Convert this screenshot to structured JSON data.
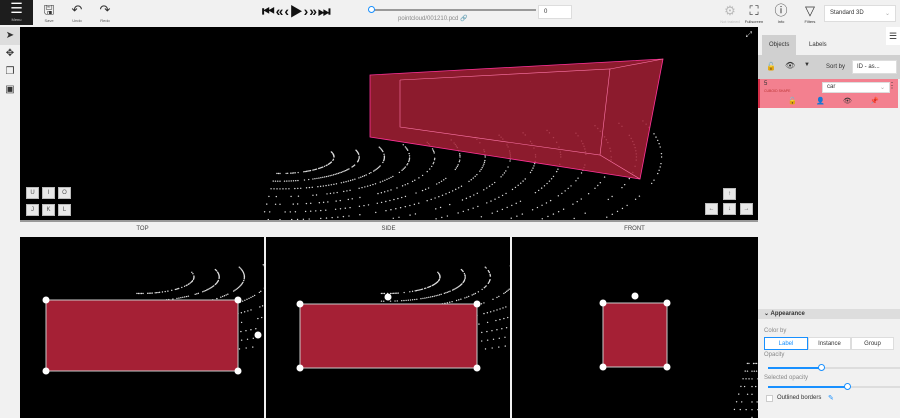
{
  "header": {
    "menu": "Menu",
    "save": "Save",
    "undo": "Undo",
    "redo": "Redo",
    "filename": "pointcloud/001210.pcd",
    "frame": "0",
    "not_trained": "Not trained",
    "fullscreen": "Fullscreen",
    "info": "Info",
    "filters": "Filters",
    "workspace": "Standard 3D",
    "player_progress": 0
  },
  "left_tools": [
    "cursor-icon",
    "move-icon",
    "cuboid-icon",
    "fit-icon"
  ],
  "main_view": {
    "camera_keys_top": [
      "U",
      "I",
      "O"
    ],
    "camera_keys_bottom": [
      "J",
      "K",
      "L"
    ],
    "arrows": [
      "↑",
      "←",
      "↓",
      "→"
    ]
  },
  "views": {
    "top": "TOP",
    "side": "SIDE",
    "front": "FRONT"
  },
  "sidebar": {
    "tabs": [
      "Objects",
      "Labels"
    ],
    "sort_by": "Sort by",
    "sort_value": "ID - as...",
    "object": {
      "id": "5",
      "type": "CUBOID SHAPE",
      "label": "car"
    },
    "appearance": {
      "title": "Appearance",
      "color_by": "Color by",
      "options": [
        "Label",
        "Instance",
        "Group"
      ],
      "selected": "Label",
      "opacity_label": "Opacity",
      "opacity": 40,
      "selected_opacity_label": "Selected opacity",
      "selected_opacity": 60,
      "outlined": "Outlined borders",
      "outlined_checked": false
    }
  },
  "colors": {
    "cuboid": "#a52035",
    "accent": "#1890ff",
    "object_item": "#f3808f"
  }
}
